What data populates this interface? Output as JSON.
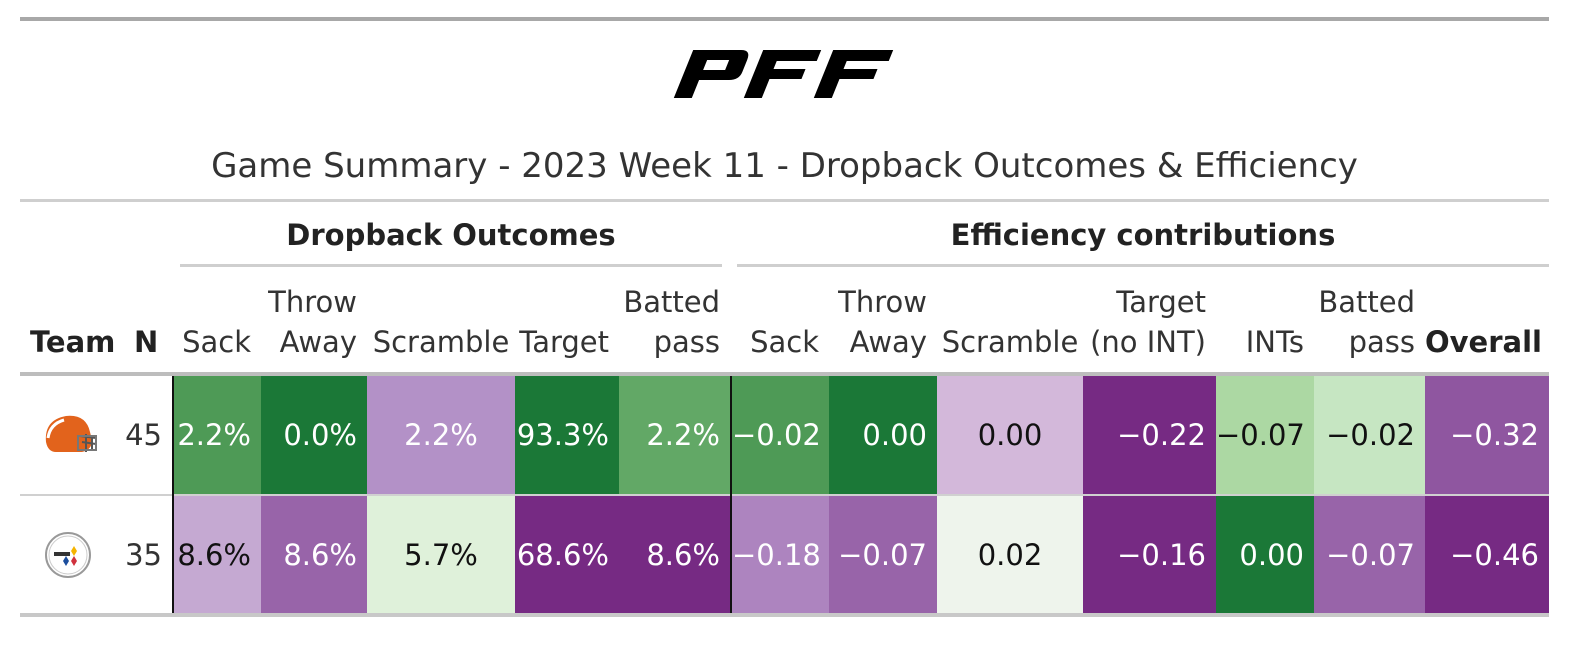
{
  "logo_text": "PFF",
  "title": "Game Summary - 2023 Week 11 - Dropback Outcomes & Efficiency",
  "spanners": {
    "outcomes": "Dropback Outcomes",
    "efficiency": "Efficiency contributions"
  },
  "headers": {
    "team": "Team",
    "n": "N",
    "outcomes": [
      {
        "l1": "",
        "l2": "Sack"
      },
      {
        "l1": "Throw",
        "l2": "Away"
      },
      {
        "l1": "",
        "l2": "Scramble"
      },
      {
        "l1": "",
        "l2": "Target"
      },
      {
        "l1": "Batted",
        "l2": "pass"
      }
    ],
    "efficiency": [
      {
        "l1": "",
        "l2": "Sack"
      },
      {
        "l1": "Throw",
        "l2": "Away"
      },
      {
        "l1": "",
        "l2": "Scramble"
      },
      {
        "l1": "Target",
        "l2": "(no INT)"
      },
      {
        "l1": "",
        "l2": "INTs"
      },
      {
        "l1": "Batted",
        "l2": "pass"
      }
    ],
    "overall": "Overall"
  },
  "rows": [
    {
      "team_icon": "browns-helmet-icon",
      "n": "45",
      "outcomes": [
        {
          "v": "2.2%",
          "bg": "#4e9a56",
          "fg": "#ffffff"
        },
        {
          "v": "0.0%",
          "bg": "#1b7837",
          "fg": "#ffffff"
        },
        {
          "v": "2.2%",
          "bg": "#b391c7",
          "fg": "#ffffff"
        },
        {
          "v": "93.3%",
          "bg": "#1b7837",
          "fg": "#ffffff"
        },
        {
          "v": "2.2%",
          "bg": "#62a866",
          "fg": "#ffffff"
        }
      ],
      "efficiency": [
        {
          "v": "−0.02",
          "bg": "#4e9a56",
          "fg": "#ffffff"
        },
        {
          "v": "0.00",
          "bg": "#1b7837",
          "fg": "#ffffff"
        },
        {
          "v": "0.00",
          "bg": "#d3b8da",
          "fg": "#111111"
        },
        {
          "v": "−0.22",
          "bg": "#762a83",
          "fg": "#ffffff"
        },
        {
          "v": "−0.07",
          "bg": "#acd8a3",
          "fg": "#111111"
        },
        {
          "v": "−0.02",
          "bg": "#c6e6c2",
          "fg": "#111111"
        },
        {
          "v": "−0.32",
          "bg": "#8f56a0",
          "fg": "#ffffff"
        }
      ]
    },
    {
      "team_icon": "steelers-logo-icon",
      "n": "35",
      "outcomes": [
        {
          "v": "8.6%",
          "bg": "#c5a9d2",
          "fg": "#111111"
        },
        {
          "v": "8.6%",
          "bg": "#9864a9",
          "fg": "#ffffff"
        },
        {
          "v": "5.7%",
          "bg": "#dff1da",
          "fg": "#111111"
        },
        {
          "v": "68.6%",
          "bg": "#762a83",
          "fg": "#ffffff"
        },
        {
          "v": "8.6%",
          "bg": "#762a83",
          "fg": "#ffffff"
        }
      ],
      "efficiency": [
        {
          "v": "−0.18",
          "bg": "#ad84bf",
          "fg": "#ffffff"
        },
        {
          "v": "−0.07",
          "bg": "#9864a9",
          "fg": "#ffffff"
        },
        {
          "v": "0.02",
          "bg": "#eef4ec",
          "fg": "#111111"
        },
        {
          "v": "−0.16",
          "bg": "#762a83",
          "fg": "#ffffff"
        },
        {
          "v": "0.00",
          "bg": "#1b7837",
          "fg": "#ffffff"
        },
        {
          "v": "−0.07",
          "bg": "#9864a9",
          "fg": "#ffffff"
        },
        {
          "v": "−0.46",
          "bg": "#762a83",
          "fg": "#ffffff"
        }
      ]
    }
  ]
}
